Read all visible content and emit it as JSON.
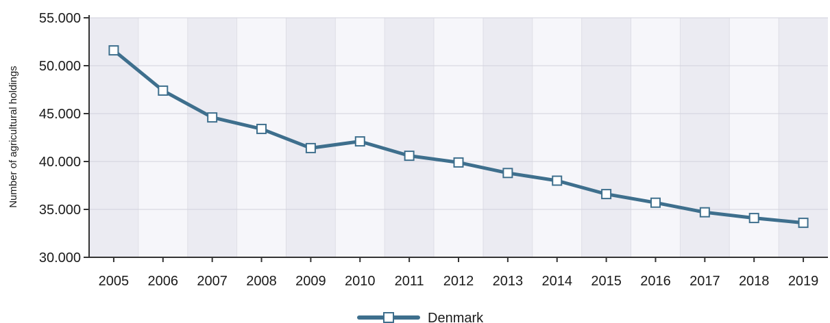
{
  "chart_data": {
    "type": "line",
    "title": "",
    "xlabel": "",
    "ylabel": "Number of agricultural holdings",
    "x": [
      "2005",
      "2006",
      "2007",
      "2008",
      "2009",
      "2010",
      "2011",
      "2012",
      "2013",
      "2014",
      "2015",
      "2016",
      "2017",
      "2018",
      "2019"
    ],
    "series": [
      {
        "name": "Denmark",
        "color": "#3e6f8d",
        "values": [
          51600,
          47400,
          44600,
          43400,
          41400,
          42100,
          40600,
          39900,
          38800,
          38000,
          36600,
          35700,
          34700,
          34100,
          33600
        ]
      }
    ],
    "yticks": [
      "30.000",
      "35.000",
      "40.000",
      "45.000",
      "50.000",
      "55.000"
    ],
    "ylim": [
      30000,
      55000
    ],
    "grid": true,
    "legend": "bottom-center",
    "colors": {
      "band_dark": "#ebebf2",
      "band_light": "#f6f6fa",
      "grid": "#d2d2dc",
      "axis": "#333333"
    }
  }
}
